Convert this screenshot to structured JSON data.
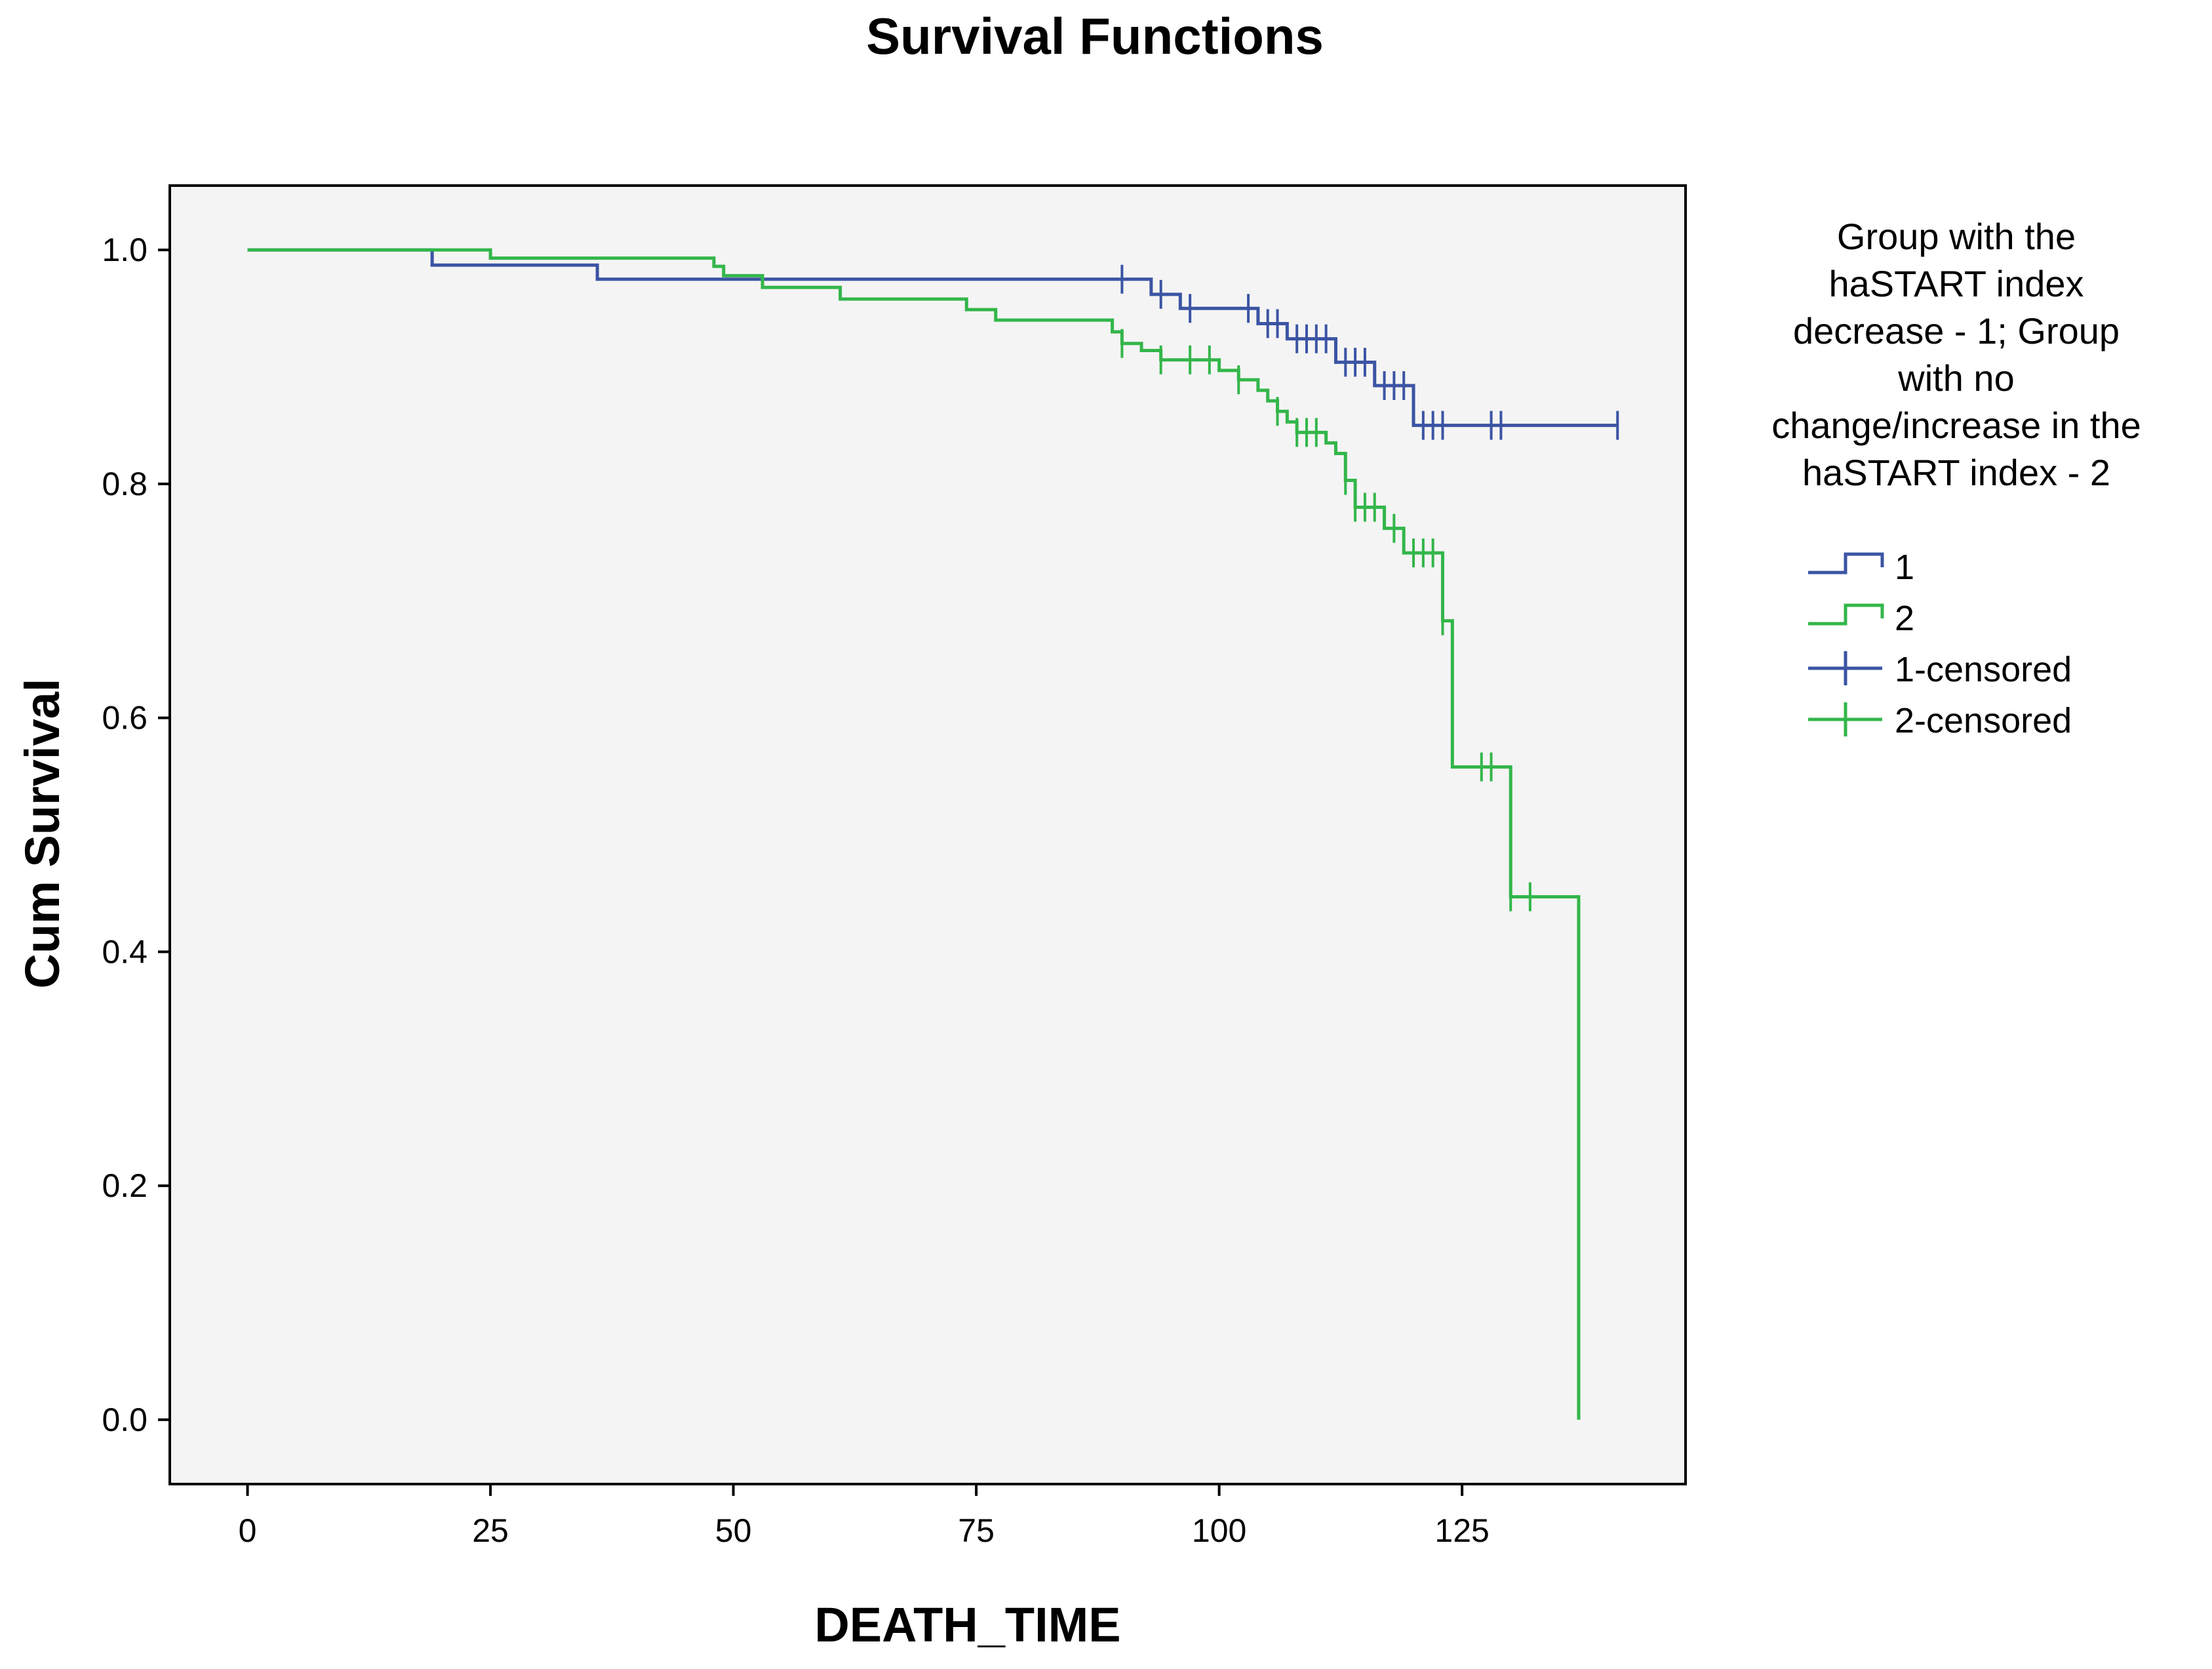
{
  "chart_data": {
    "type": "line",
    "title": "Survival Functions",
    "xlabel": "DEATH_TIME",
    "ylabel": "Cum Survival",
    "xlim": [
      -8,
      148
    ],
    "ylim": [
      -0.055,
      1.055
    ],
    "xticks": [
      "0",
      "25",
      "50",
      "75",
      "100",
      "125"
    ],
    "xtick_values": [
      0,
      25,
      50,
      75,
      100,
      125
    ],
    "yticks": [
      "0.0",
      "0.2",
      "0.4",
      "0.6",
      "0.8",
      "1.0"
    ],
    "ytick_values": [
      0,
      0.2,
      0.4,
      0.6,
      0.8,
      1.0
    ],
    "grid": false,
    "plot_background": "#f4f4f4",
    "legend": {
      "position": "right",
      "title_lines": [
        "Group with the",
        "haSTART index",
        "decrease -  1;     Group",
        "with no",
        "change/increase in the",
        "haSTART index - 2"
      ],
      "entries": [
        {
          "label": "1",
          "kind": "line",
          "color": "#3b54a4"
        },
        {
          "label": "2",
          "kind": "line",
          "color": "#33b64a"
        },
        {
          "label": "1-censored",
          "kind": "censor",
          "color": "#3b54a4"
        },
        {
          "label": "2-censored",
          "kind": "censor",
          "color": "#33b64a"
        }
      ]
    },
    "series": [
      {
        "name": "1",
        "color": "#3b54a4",
        "steps": [
          [
            0,
            1.0
          ],
          [
            19,
            0.987
          ],
          [
            36,
            0.975
          ],
          [
            93,
            0.962
          ],
          [
            96,
            0.95
          ],
          [
            104,
            0.937
          ],
          [
            107,
            0.924
          ],
          [
            112,
            0.904
          ],
          [
            116,
            0.884
          ],
          [
            120,
            0.85
          ]
        ],
        "end_x": 141,
        "censored": [
          90,
          94,
          97,
          103,
          105,
          106,
          108,
          109,
          110,
          111,
          113,
          114,
          115,
          117,
          118,
          119,
          121,
          122,
          123,
          128,
          129,
          141
        ]
      },
      {
        "name": "2",
        "color": "#33b64a",
        "steps": [
          [
            0,
            1.0
          ],
          [
            25,
            0.993
          ],
          [
            48,
            0.986
          ],
          [
            49,
            0.978
          ],
          [
            53,
            0.968
          ],
          [
            61,
            0.958
          ],
          [
            74,
            0.949
          ],
          [
            77,
            0.94
          ],
          [
            89,
            0.93
          ],
          [
            90,
            0.92
          ],
          [
            92,
            0.914
          ],
          [
            94,
            0.906
          ],
          [
            100,
            0.897
          ],
          [
            102,
            0.889
          ],
          [
            104,
            0.88
          ],
          [
            105,
            0.871
          ],
          [
            106,
            0.862
          ],
          [
            107,
            0.853
          ],
          [
            108,
            0.844
          ],
          [
            111,
            0.835
          ],
          [
            112,
            0.826
          ],
          [
            113,
            0.803
          ],
          [
            114,
            0.78
          ],
          [
            117,
            0.762
          ],
          [
            119,
            0.741
          ],
          [
            123,
            0.683
          ],
          [
            124,
            0.558
          ],
          [
            130,
            0.447
          ],
          [
            137,
            0.0
          ]
        ],
        "end_x": 137,
        "censored": [
          90,
          94,
          97,
          99,
          102,
          106,
          108,
          109,
          110,
          113,
          114,
          115,
          116,
          118,
          120,
          121,
          122,
          123,
          127,
          128,
          130,
          132
        ]
      }
    ]
  }
}
